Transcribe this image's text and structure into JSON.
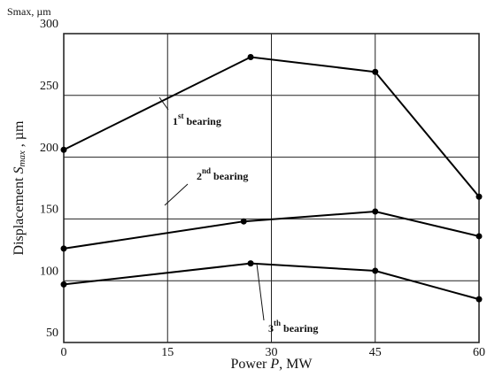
{
  "chart_data": {
    "type": "line",
    "corner_label": "Smax, µm",
    "y_label": [
      "Displacement ",
      "S",
      "max",
      " , µm"
    ],
    "x_label": [
      "Power ",
      "P",
      ", MW"
    ],
    "xlim": [
      0,
      60
    ],
    "xticks": [
      0,
      15,
      30,
      45,
      60
    ],
    "ylim": [
      50,
      300
    ],
    "yticks": [
      50,
      100,
      150,
      200,
      250,
      300
    ],
    "grid": true,
    "series": [
      {
        "name": "1st bearing",
        "color": "#000000",
        "x": [
          0,
          27,
          45,
          60
        ],
        "values": [
          206,
          281,
          269,
          168
        ]
      },
      {
        "name": "2nd bearing",
        "color": "#000000",
        "x": [
          0,
          26,
          45,
          60
        ],
        "values": [
          126,
          148,
          156,
          136
        ]
      },
      {
        "name": "3th bearing",
        "color": "#000000",
        "x": [
          0,
          27,
          45,
          60
        ],
        "values": [
          97,
          114,
          108,
          85
        ]
      }
    ]
  }
}
